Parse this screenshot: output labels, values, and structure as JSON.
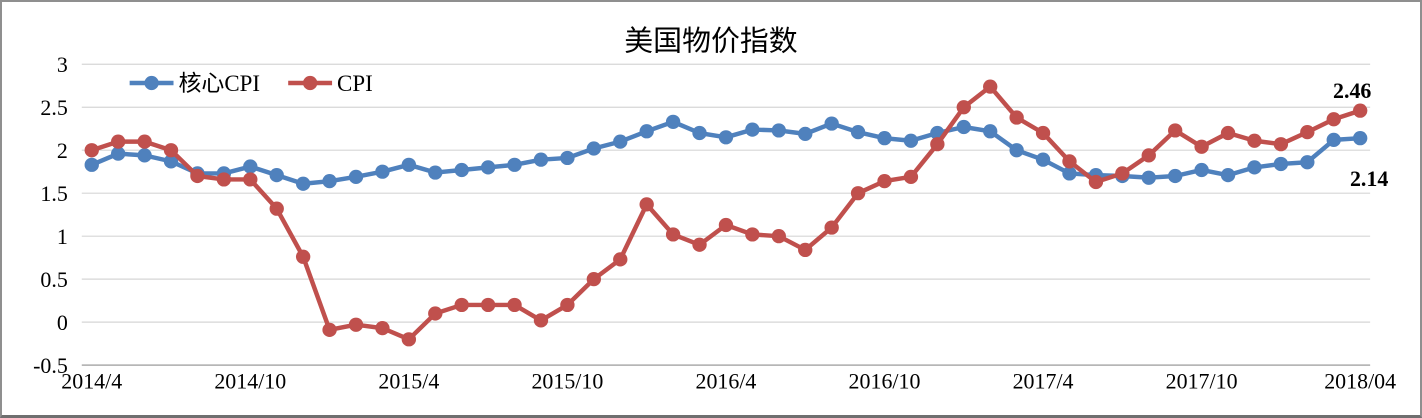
{
  "chart_data": {
    "type": "line",
    "title": "美国物价指数",
    "xlabel": "",
    "ylabel": "",
    "ylim": [
      -0.5,
      3
    ],
    "grid": true,
    "legend_position": "top-left-inside",
    "y_ticks": [
      3,
      2.5,
      2,
      1.5,
      1,
      0.5,
      0,
      -0.5
    ],
    "y_tick_labels": [
      "3",
      "2.5",
      "2",
      "1.5",
      "1",
      "0.5",
      "0",
      "-0.5"
    ],
    "x_tick_labels": [
      "2014/4",
      "2014/10",
      "2015/4",
      "2015/10",
      "2016/4",
      "2016/10",
      "2017/4",
      "2017/10",
      "2018/04"
    ],
    "x_tick_interval_months": 6,
    "months": [
      "2014/4",
      "2014/5",
      "2014/6",
      "2014/7",
      "2014/8",
      "2014/9",
      "2014/10",
      "2014/11",
      "2014/12",
      "2015/1",
      "2015/2",
      "2015/3",
      "2015/4",
      "2015/5",
      "2015/6",
      "2015/7",
      "2015/8",
      "2015/9",
      "2015/10",
      "2015/11",
      "2015/12",
      "2016/1",
      "2016/2",
      "2016/3",
      "2016/4",
      "2016/5",
      "2016/6",
      "2016/7",
      "2016/8",
      "2016/9",
      "2016/10",
      "2016/11",
      "2016/12",
      "2017/1",
      "2017/2",
      "2017/3",
      "2017/4",
      "2017/5",
      "2017/6",
      "2017/7",
      "2017/8",
      "2017/9",
      "2017/10",
      "2017/11",
      "2017/12",
      "2018/1",
      "2018/2",
      "2018/3",
      "2018/4"
    ],
    "series": [
      {
        "key": "core-cpi",
        "name": "核心CPI",
        "color": "#4F81BD",
        "values": [
          1.83,
          1.96,
          1.94,
          1.87,
          1.73,
          1.73,
          1.81,
          1.71,
          1.61,
          1.64,
          1.69,
          1.75,
          1.83,
          1.74,
          1.77,
          1.8,
          1.83,
          1.89,
          1.91,
          2.02,
          2.1,
          2.22,
          2.33,
          2.2,
          2.15,
          2.24,
          2.23,
          2.19,
          2.31,
          2.21,
          2.14,
          2.11,
          2.2,
          2.27,
          2.22,
          2.0,
          1.89,
          1.73,
          1.71,
          1.7,
          1.68,
          1.7,
          1.77,
          1.71,
          1.8,
          1.84,
          1.86,
          2.12,
          2.14
        ],
        "end_label": {
          "text": "2.14",
          "color": "#4F81BD"
        }
      },
      {
        "key": "cpi",
        "name": "CPI",
        "color": "#C0504D",
        "values": [
          2.0,
          2.1,
          2.1,
          2.0,
          1.7,
          1.66,
          1.66,
          1.32,
          0.76,
          -0.09,
          -0.03,
          -0.07,
          -0.2,
          0.1,
          0.2,
          0.2,
          0.2,
          0.02,
          0.2,
          0.5,
          0.73,
          1.37,
          1.02,
          0.9,
          1.13,
          1.02,
          1.0,
          0.84,
          1.1,
          1.5,
          1.64,
          1.69,
          2.07,
          2.5,
          2.74,
          2.38,
          2.2,
          1.87,
          1.63,
          1.73,
          1.94,
          2.23,
          2.04,
          2.2,
          2.11,
          2.07,
          2.21,
          2.36,
          2.46
        ],
        "end_label": {
          "text": "2.46",
          "color": "#C00000"
        }
      }
    ],
    "colors": {
      "background": "#FFFFFF",
      "frame_border": "#8F8F8F",
      "gridline": "#D6D6D6",
      "axis_line": "#ABABAB",
      "text": "#000000"
    }
  }
}
